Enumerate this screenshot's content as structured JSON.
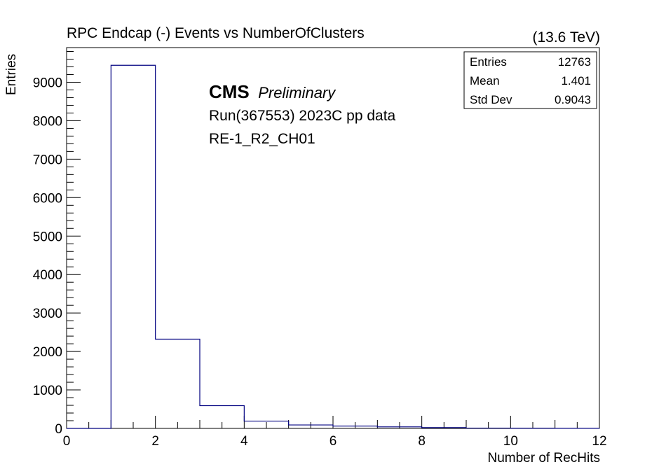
{
  "chart_data": {
    "type": "bar",
    "subtype": "histogram",
    "title": "RPC Endcap (-)  Events vs NumberOfClusters",
    "energy_label": "(13.6 TeV)",
    "xlabel": "Number of RecHits",
    "ylabel": "Entries",
    "xlim": [
      0,
      12
    ],
    "ylim": [
      0,
      9900
    ],
    "x_ticks": [
      0,
      2,
      4,
      6,
      8,
      10,
      12
    ],
    "y_ticks": [
      0,
      1000,
      2000,
      3000,
      4000,
      5000,
      6000,
      7000,
      8000,
      9000
    ],
    "bin_edges": [
      0,
      1,
      2,
      3,
      4,
      5,
      6,
      7,
      8,
      9,
      10,
      11,
      12
    ],
    "values": [
      0,
      9440,
      2320,
      590,
      190,
      90,
      60,
      40,
      20,
      8,
      4,
      2
    ],
    "line_color": "#000080",
    "grid": false,
    "annotations": {
      "experiment": "CMS",
      "status": "Preliminary",
      "run": "Run(367553) 2023C pp data",
      "chamber": "RE-1_R2_CH01"
    },
    "stats": [
      {
        "label": "Entries",
        "value": "12763"
      },
      {
        "label": "Mean",
        "value": "1.401"
      },
      {
        "label": "Std Dev",
        "value": "0.9043"
      }
    ]
  }
}
